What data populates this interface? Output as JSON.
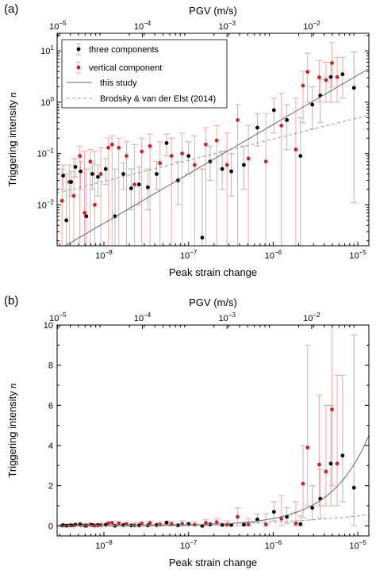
{
  "chart_data": [
    {
      "type": "scatter",
      "panel_label": "(a)",
      "xlabel": "Peak strain change",
      "ylabel": "Triggering intensity",
      "ylabel_symbol": "n",
      "top_xlabel": "PGV (m/s)",
      "x_scale": "log",
      "y_scale": "log",
      "xlim": [
        2.8e-09,
        1.35e-05
      ],
      "ylim": [
        0.0016,
        22
      ],
      "x_ticks": [
        1e-08,
        1e-07,
        1e-06,
        1e-05
      ],
      "x_tick_labels": [
        [
          "10",
          "−8"
        ],
        [
          "10",
          "−7"
        ],
        [
          "10",
          "−6"
        ],
        [
          "10",
          "−5"
        ]
      ],
      "y_ticks": [
        0.01,
        0.1,
        1,
        10
      ],
      "y_tick_labels": [
        [
          "10",
          "−2"
        ],
        [
          "10",
          "−1"
        ],
        [
          "10",
          "0"
        ],
        [
          "10",
          "1"
        ]
      ],
      "top_ticks": [
        1e-05,
        0.0001,
        0.001,
        0.01
      ],
      "top_tick_labels": [
        [
          "10",
          "−5"
        ],
        [
          "10",
          "−4"
        ],
        [
          "10",
          "−3"
        ],
        [
          "10",
          "−2"
        ]
      ],
      "legend": {
        "placement": "top-left",
        "entries": [
          {
            "label": "three components",
            "style": "black-dot-errorbar"
          },
          {
            "label": "vertical component",
            "style": "red-dot-errorbar"
          },
          {
            "label": "this study",
            "style": "solid-line"
          },
          {
            "label": "Brodsky & van der Elst (2014)",
            "style": "dashed-line"
          }
        ]
      },
      "series": [
        {
          "name": "three components",
          "color": "#000000",
          "points": [
            [
              3.3e-09,
              0.037,
              0.02,
              0.06
            ],
            [
              3.6e-09,
              0.005,
              0.0016,
              0.04
            ],
            [
              4.1e-09,
              0.028,
              0.015,
              0.045
            ],
            [
              4.6e-09,
              0.055,
              0.035,
              0.08
            ],
            [
              5.3e-09,
              0.045,
              0.02,
              0.07
            ],
            [
              6.2e-09,
              0.006,
              0.0016,
              0.05
            ],
            [
              7.3e-09,
              0.04,
              0.02,
              0.065
            ],
            [
              8.5e-09,
              0.035,
              0.015,
              0.06
            ],
            [
              1.05e-08,
              0.05,
              0.025,
              0.08
            ],
            [
              1.35e-08,
              0.006,
              0.0016,
              0.05
            ],
            [
              1.7e-08,
              0.04,
              0.02,
              0.065
            ],
            [
              2.1e-08,
              0.021,
              0.008,
              0.05
            ],
            [
              2.6e-08,
              0.025,
              0.01,
              0.055
            ],
            [
              3.3e-08,
              0.022,
              0.008,
              0.05
            ],
            [
              4.2e-08,
              0.04,
              0.02,
              0.07
            ],
            [
              5.5e-08,
              0.16,
              0.09,
              0.24
            ],
            [
              7.5e-08,
              0.03,
              0.01,
              0.07
            ],
            [
              1e-07,
              0.09,
              0.04,
              0.17
            ],
            [
              1.45e-07,
              0.0023,
              0.0016,
              0.05
            ],
            [
              1.8e-07,
              0.07,
              0.03,
              0.14
            ],
            [
              2.5e-07,
              0.05,
              0.02,
              0.11
            ],
            [
              3.2e-07,
              0.045,
              0.015,
              0.1
            ],
            [
              4.5e-07,
              0.06,
              0.02,
              0.14
            ],
            [
              6.5e-07,
              0.32,
              0.14,
              0.6
            ],
            [
              1.02e-06,
              0.7,
              0.25,
              1.2
            ],
            [
              1.45e-06,
              0.45,
              0.12,
              0.9
            ],
            [
              2.1e-06,
              0.09,
              0.0016,
              0.5
            ],
            [
              2.9e-06,
              0.9,
              0.3,
              2
            ],
            [
              3.6e-06,
              1.35,
              0.4,
              2.8
            ],
            [
              4.8e-06,
              3.1,
              1,
              6
            ],
            [
              6.6e-06,
              3.5,
              1.2,
              7.5
            ],
            [
              9e-06,
              1.9,
              0.011,
              9.5
            ]
          ]
        },
        {
          "name": "vertical component",
          "color": "#d4201a",
          "points": [
            [
              3.2e-09,
              0.012,
              0.0016,
              0.05
            ],
            [
              3.9e-09,
              0.028,
              0.0016,
              0.06
            ],
            [
              4.4e-09,
              0.015,
              0.0016,
              0.08
            ],
            [
              5.2e-09,
              0.09,
              0.0016,
              0.14
            ],
            [
              5.9e-09,
              0.007,
              0.0016,
              0.11
            ],
            [
              6.9e-09,
              0.07,
              0.0016,
              0.12
            ],
            [
              7.8e-09,
              0.01,
              0.0016,
              0.11
            ],
            [
              9.2e-09,
              0.04,
              0.0016,
              0.13
            ],
            [
              1.13e-08,
              0.13,
              0.0016,
              0.2
            ],
            [
              1.25e-08,
              0.15,
              0.0016,
              0.22
            ],
            [
              1.5e-08,
              0.13,
              0.0016,
              0.2
            ],
            [
              1.85e-08,
              0.09,
              0.0016,
              0.17
            ],
            [
              2.3e-08,
              0.025,
              0.0016,
              0.15
            ],
            [
              2.8e-08,
              0.11,
              0.0016,
              0.2
            ],
            [
              3.5e-08,
              0.14,
              0.0016,
              0.24
            ],
            [
              4.6e-08,
              0.065,
              0.0016,
              0.17
            ],
            [
              6.3e-08,
              0.09,
              0.0016,
              0.2
            ],
            [
              8.4e-08,
              0.1,
              0.0016,
              0.25
            ],
            [
              1.18e-07,
              0.06,
              0.0016,
              0.22
            ],
            [
              1.6e-07,
              0.15,
              0.0016,
              0.32
            ],
            [
              2.15e-07,
              0.18,
              0.0016,
              0.35
            ],
            [
              2.85e-07,
              0.06,
              0.0016,
              0.25
            ],
            [
              3.8e-07,
              0.45,
              0.0016,
              0.9
            ],
            [
              5.1e-07,
              0.08,
              0.0016,
              0.35
            ],
            [
              8.2e-07,
              0.07,
              0.0016,
              0.6
            ],
            [
              1.25e-06,
              0.35,
              0.0016,
              1.5
            ],
            [
              1.85e-06,
              0.12,
              0.0016,
              1.2
            ],
            [
              2.25e-06,
              2.1,
              0.4,
              4
            ],
            [
              2.55e-06,
              3.9,
              1,
              9
            ],
            [
              3.5e-06,
              3.05,
              1,
              6.5
            ],
            [
              4.2e-06,
              2.7,
              1,
              6
            ],
            [
              4.95e-06,
              5.8,
              2,
              14.5
            ],
            [
              5.7e-06,
              3.1,
              1,
              7.5
            ]
          ]
        }
      ],
      "lines": [
        {
          "name": "this study",
          "style": "solid",
          "color": "#666666",
          "x": [
            3.5e-09,
            1.35e-05
          ],
          "y": [
            0.0016,
            4.5
          ]
        },
        {
          "name": "Brodsky & van der Elst (2014)",
          "style": "dashed",
          "color": "#9a9a9a",
          "x": [
            2.8e-09,
            1.35e-05
          ],
          "y": [
            0.017,
            0.56
          ]
        }
      ]
    },
    {
      "type": "scatter",
      "panel_label": "(b)",
      "xlabel": "Peak strain change",
      "ylabel": "Triggering intensity",
      "ylabel_symbol": "n",
      "top_xlabel": "PGV (m/s)",
      "x_scale": "log",
      "y_scale": "linear",
      "xlim": [
        2.8e-09,
        1.35e-05
      ],
      "ylim": [
        -0.5,
        10
      ],
      "x_ticks": [
        1e-08,
        1e-07,
        1e-06,
        1e-05
      ],
      "x_tick_labels": [
        [
          "10",
          "−8"
        ],
        [
          "10",
          "−7"
        ],
        [
          "10",
          "−6"
        ],
        [
          "10",
          "−5"
        ]
      ],
      "y_ticks": [
        0,
        2,
        4,
        6,
        8,
        10
      ],
      "y_tick_labels": [
        "0",
        "2",
        "4",
        "6",
        "8",
        "10"
      ],
      "top_ticks": [
        1e-05,
        0.0001,
        0.001,
        0.01
      ],
      "top_tick_labels": [
        [
          "10",
          "−5"
        ],
        [
          "10",
          "−4"
        ],
        [
          "10",
          "−3"
        ],
        [
          "10",
          "−2"
        ]
      ],
      "series_ref": "same data as panel (a)",
      "lines": [
        {
          "name": "this study",
          "style": "solid",
          "color": "#666666",
          "model": "power"
        },
        {
          "name": "Brodsky & van der Elst (2014)",
          "style": "dashed",
          "color": "#9a9a9a",
          "model": "power"
        }
      ]
    }
  ]
}
